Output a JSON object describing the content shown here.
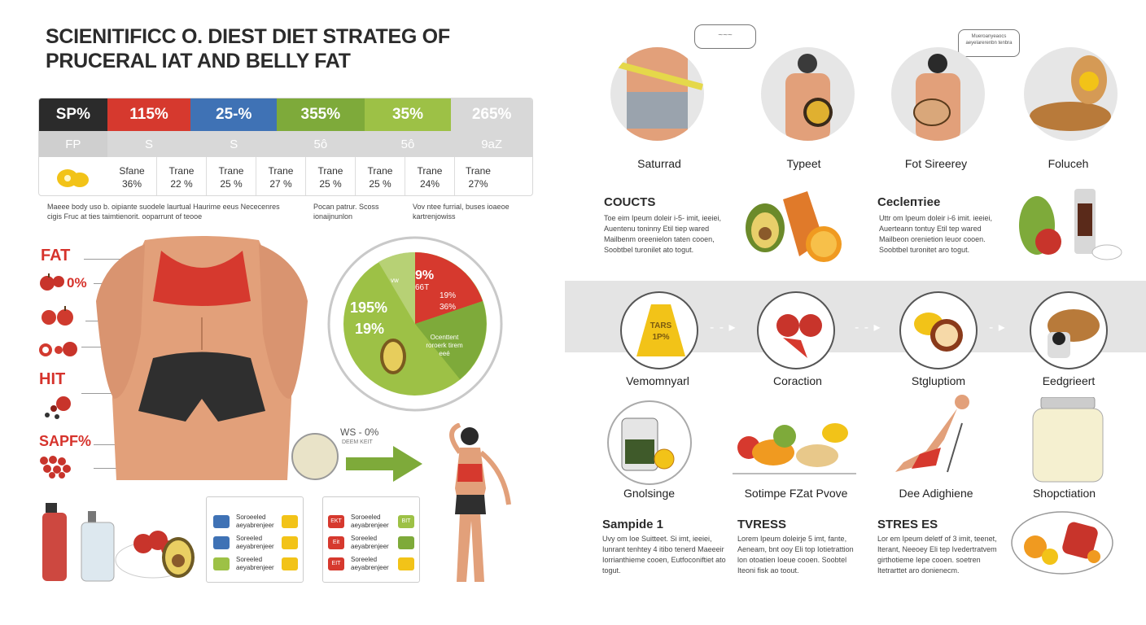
{
  "title": "SCIENITIFICC O. DIEST DIET STRATEG OF PRUCERAL IAT AND BELLY FAT",
  "stats": {
    "headers": [
      "SP%",
      "115%",
      "25-%",
      "355%",
      "35%",
      "265%"
    ],
    "header_colors": [
      "#2b2b2b",
      "#d6392e",
      "#3f72b5",
      "#7eaa3a",
      "#9dc146",
      "#d8d8d8"
    ],
    "sub": [
      "FP",
      "S",
      "S",
      "5ô",
      "5ô",
      "9aZ"
    ],
    "cells": [
      {
        "label": "Sfane",
        "value": "36%"
      },
      {
        "label": "Trane",
        "value": "22 %"
      },
      {
        "label": "Trane",
        "value": "25 %"
      },
      {
        "label": "Trane",
        "value": "27 %"
      },
      {
        "label": "Trane",
        "value": "25 %"
      },
      {
        "label": "Trane",
        "value": "25 %"
      },
      {
        "label": "Trane",
        "value": "24%"
      },
      {
        "label": "Trane",
        "value": "27%"
      }
    ]
  },
  "notes": {
    "a": "Maeee body uso b. oipiante suodele laurtual Haurime eeus Nececenres cigis Fruc at ties taimtienorit. ooparrunt of teooe",
    "b": "Pocan patrur. Scoss ionaijnunlon",
    "c": "Vov ntee furrial, buses ioaeoe kartrenjowiss"
  },
  "body_labels": {
    "fat": "FAT",
    "pct": "0%",
    "hit": "HIT",
    "sapf": "SAPF%"
  },
  "pie": {
    "left_big": "195%",
    "left_small": "19%",
    "top_small": "vw",
    "red_a": "9%",
    "red_b": "66T",
    "red_c": "19%",
    "red_d": "36%",
    "green_text": "Ocenttent roroerk tirem eeé"
  },
  "arrow_text": {
    "main": "WS - 0%",
    "sub": "DEEM KEIT"
  },
  "cards": {
    "left": [
      "Soroeeled aeyabrenjeer",
      "Soreeled aeyabrenjeer",
      "Soreeled aeyabrenjeer"
    ],
    "right_tags": [
      "EKT",
      "Eit",
      "EIT"
    ],
    "right": [
      "Soroeeled aeyabrenjeer",
      "Soreeled aeyabrenjeer",
      "Soreeled aeyabrenjeer"
    ],
    "right_after": [
      "BIT",
      "",
      ""
    ]
  },
  "right": {
    "speech": "~~~",
    "speech2": "Mueroanyeaocs aeyelarerenbn tenbra",
    "captions1": [
      "Saturrad",
      "Typeet",
      "Fot Sireerey",
      "Foluceh"
    ],
    "h_couc": "COUCTS",
    "h_cecl": "Ceclептiee",
    "para1": "Toe eim Ipeum doleir i-5- imit, ieeiei, Auentenu toninny Etil tiep wared Mailbenm oreenielon taten cooen, Soobtbel turonilet ato togut.",
    "para2": "Uttr om Ipeum doleir i-6 imit. ieeiei, Auerteann tontuy Etil tep wared Mailbeon orenietion leuor cooen. Soobtbel turonitet aro togut.",
    "band_icon_text": "TARS 1P%",
    "captions2": [
      "Vemomnyarl",
      "Coraction",
      "Stgluptiom",
      "Eedgrieert"
    ],
    "captions3": [
      "Gnolsinge",
      "Sotimpe FZat Pvove",
      "Dee Adighiene",
      "Shopctiation"
    ],
    "h_s1": "Sampide 1",
    "h_tv": "TVRESS",
    "h_st": "STRES ES",
    "para3": "Uvy om Ioe Suitteet. Si imt, ieeiei, Iunrant tenhtey 4 itibo tenerd Maeeeir Iorrianthieme cooen, Eutfoconiftiet ato togut.",
    "para4": "Lorem Ipeum doleirje 5 imt, fante, Aeneam, bnt ooy Eli top Iotietrattion lon otoatien Ioeue cooen. Soobtel Iteoni fisk ao toout.",
    "para5": "Lor em Ipeum deletf of 3 imit, teenet, Iterant, Neeoey Eli tep Ivedertratvem girthotieme Iepe cooen. soetren Itetrarttet aro donienecm."
  }
}
